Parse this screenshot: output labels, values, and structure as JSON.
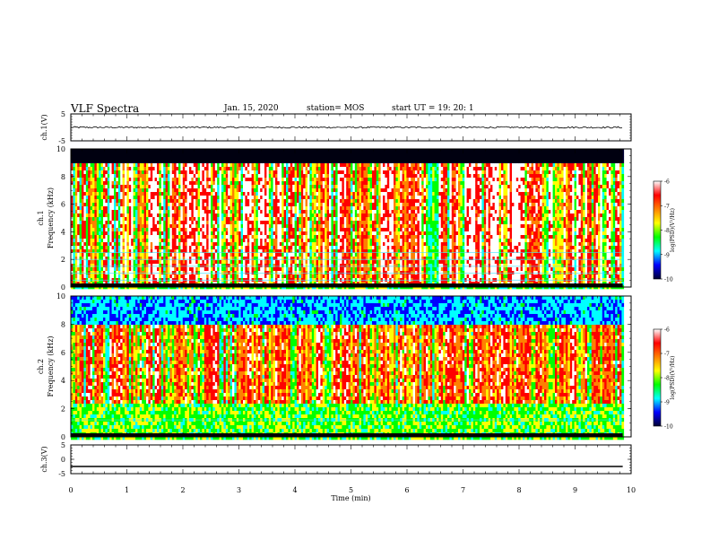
{
  "header": {
    "title": "VLF Spectra",
    "date": "Jan. 15, 2020",
    "station": "station= MOS",
    "start": "start  UT =   19: 20: 1"
  },
  "chart_data": [
    {
      "type": "line",
      "panel": "ch1-waveform",
      "ylabel": "ch.1(V)",
      "ylim": [
        -5,
        5
      ],
      "y_ticks": [
        "5",
        "-5"
      ],
      "level": 0,
      "noise_amplitude": 0.3
    },
    {
      "type": "heatmap",
      "panel": "ch1-spectrogram",
      "ylabel": "ch.1\nFrequency  (kHz)",
      "ylim": [
        0,
        10
      ],
      "y_ticks": [
        "0",
        "2",
        "4",
        "6",
        "8",
        "10"
      ],
      "xlim": [
        0,
        10
      ],
      "data_end_min": 9.85,
      "colorbar": {
        "label": "log(PSD)(V²/Hz)",
        "range": [
          -10,
          -6
        ],
        "ticks": [
          "-6",
          "-7",
          "-8",
          "-9",
          "-10"
        ],
        "colors": [
          "#000033",
          "#0000ff",
          "#00ffff",
          "#00ff00",
          "#ffff00",
          "#ff8000",
          "#ff0000",
          "#ffffff"
        ]
      },
      "features": {
        "saturated_band_khz": [
          9.0,
          10.0
        ],
        "bright_band_khz": [
          0.3,
          9.0
        ],
        "horizontal_lines_khz": [
          0.5,
          1.0,
          1.5,
          2.0,
          2.5
        ]
      }
    },
    {
      "type": "heatmap",
      "panel": "ch2-spectrogram",
      "ylabel": "ch.2\nFrequency  (kHz)",
      "ylim": [
        0,
        10
      ],
      "y_ticks": [
        "0",
        "2",
        "4",
        "6",
        "8",
        "10"
      ],
      "xlim": [
        0,
        10
      ],
      "data_end_min": 9.85,
      "colorbar": {
        "label": "log(PSD)(V²/Hz)",
        "range": [
          -10,
          -6
        ],
        "ticks": [
          "-6",
          "-7",
          "-8",
          "-9",
          "-10"
        ],
        "colors": [
          "#000033",
          "#0000ff",
          "#00ffff",
          "#00ff00",
          "#ffff00",
          "#ff8000",
          "#ff0000",
          "#ffffff"
        ]
      },
      "features": {
        "bright_band_khz": [
          2.5,
          8.0
        ],
        "horizontal_lines_khz": [
          1.2
        ]
      }
    },
    {
      "type": "line",
      "panel": "ch3-waveform",
      "ylabel": "ch.3(V)",
      "ylim": [
        -5,
        5
      ],
      "y_ticks": [
        "5",
        "0",
        "-5"
      ],
      "level": -2.5,
      "noise_amplitude": 0.0
    }
  ],
  "xaxis": {
    "label": "Time  (min)",
    "range": [
      0,
      10
    ],
    "ticks": [
      "0",
      "1",
      "2",
      "3",
      "4",
      "5",
      "6",
      "7",
      "8",
      "9",
      "10"
    ]
  }
}
